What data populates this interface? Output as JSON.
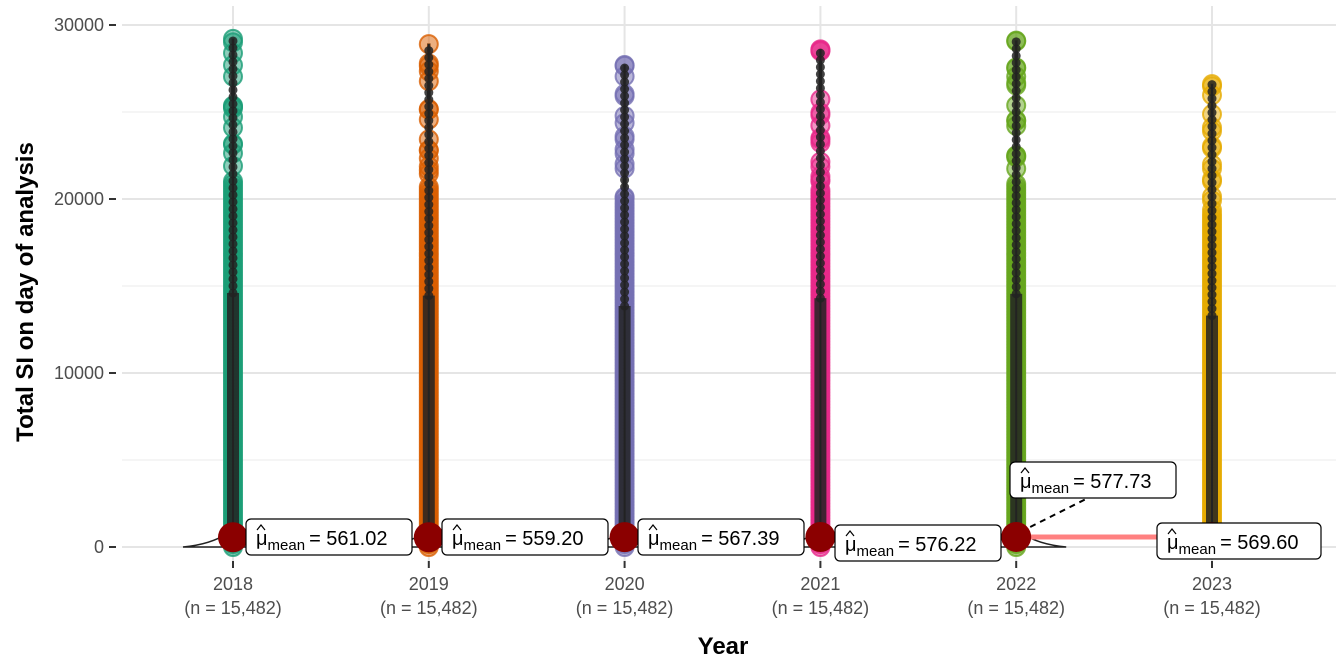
{
  "chart_data": {
    "type": "violin-dot",
    "title": "",
    "xlabel": "Year",
    "ylabel": "Total SI on day of analysis",
    "ylim": [
      -1200,
      30500
    ],
    "yticks": [
      0,
      10000,
      20000,
      30000
    ],
    "ytick_labels": [
      "0",
      "10000",
      "20000",
      "30000"
    ],
    "grid": true,
    "legend": "none",
    "categories": [
      {
        "year": "2018",
        "n_label": "(n = 15,482)",
        "color": "#1B9E77",
        "max": 29200,
        "mean": 561.02,
        "mean_prefix": "μ",
        "mean_sub": "mean",
        "mean_value": "= 561.02"
      },
      {
        "year": "2019",
        "n_label": "(n = 15,482)",
        "color": "#D95F02",
        "max": 28900,
        "mean": 559.2,
        "mean_prefix": "μ",
        "mean_sub": "mean",
        "mean_value": "= 559.20"
      },
      {
        "year": "2020",
        "n_label": "(n = 15,482)",
        "color": "#7570B3",
        "max": 27700,
        "mean": 567.39,
        "mean_prefix": "μ",
        "mean_sub": "mean",
        "mean_value": "= 567.39"
      },
      {
        "year": "2021",
        "n_label": "(n = 15,482)",
        "color": "#E7298A",
        "max": 28600,
        "mean": 576.22,
        "mean_prefix": "μ",
        "mean_sub": "mean",
        "mean_value": "= 576.22"
      },
      {
        "year": "2022",
        "n_label": "(n = 15,482)",
        "color": "#66A61E",
        "max": 29100,
        "mean": 577.73,
        "mean_prefix": "μ",
        "mean_sub": "mean",
        "mean_value": "= 577.73"
      },
      {
        "year": "2023",
        "n_label": "(n = 15,482)",
        "color": "#E6AB02",
        "max": 26600,
        "mean": 569.6,
        "mean_prefix": "μ",
        "mean_sub": "mean",
        "mean_value": "= 569.60"
      }
    ],
    "mean_point_color": "#8B0000",
    "mean_line_color": "#FF8080"
  }
}
